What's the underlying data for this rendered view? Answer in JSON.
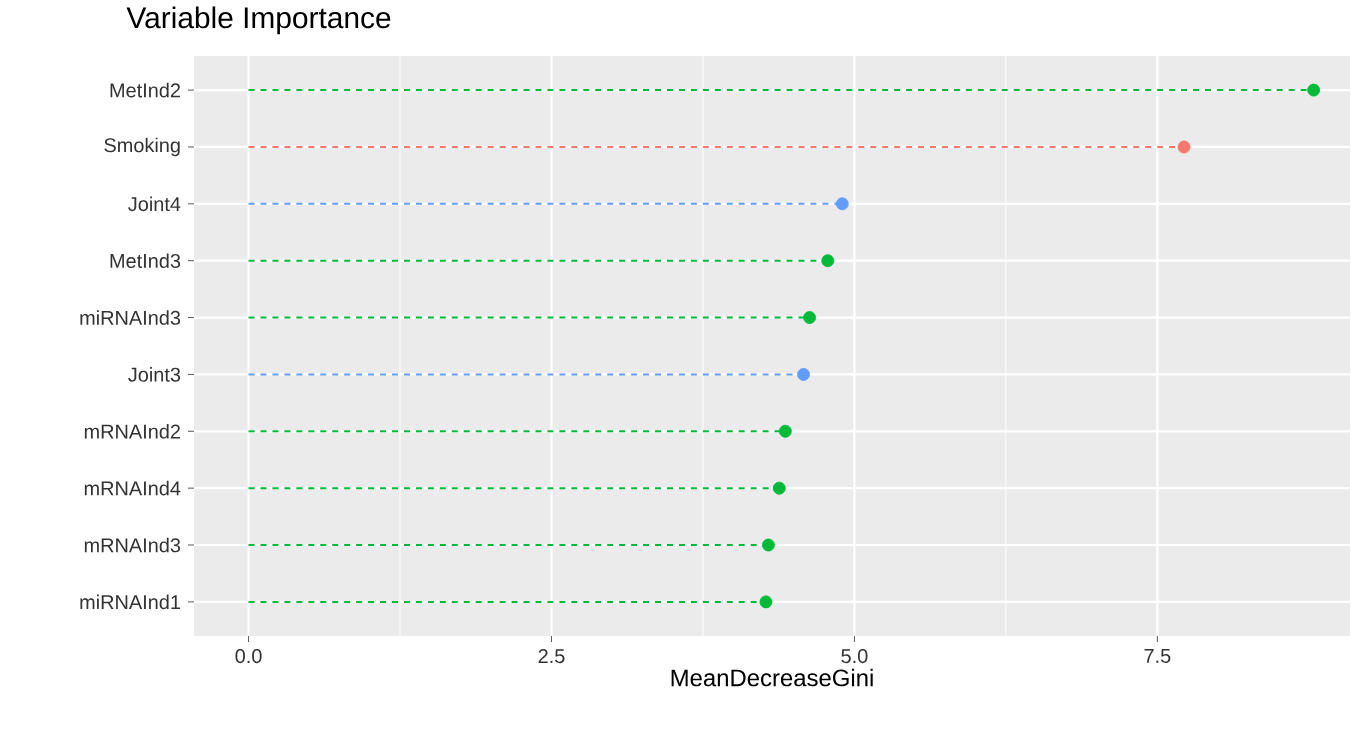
{
  "chart_data": {
    "type": "lollipop",
    "title": "Variable Importance",
    "xlabel": "MeanDecreaseGini",
    "orientation": "horizontal",
    "categories": [
      "MetInd2",
      "Smoking",
      "Joint4",
      "MetInd3",
      "miRNAInd3",
      "Joint3",
      "mRNAInd2",
      "mRNAInd4",
      "mRNAInd3",
      "miRNAInd1"
    ],
    "values": [
      8.79,
      7.72,
      4.9,
      4.78,
      4.63,
      4.58,
      4.43,
      4.38,
      4.29,
      4.27
    ],
    "colors": [
      "#00ba38",
      "#f8766d",
      "#619cff",
      "#00ba38",
      "#00ba38",
      "#619cff",
      "#00ba38",
      "#00ba38",
      "#00ba38",
      "#00ba38"
    ],
    "xlim": [
      -0.45,
      9.09
    ],
    "xticks": [
      {
        "value": 0,
        "label": "0.0"
      },
      2.5,
      {
        "value": 5,
        "label": "5.0"
      },
      7.5
    ],
    "grid": true,
    "marker": "circle",
    "line_style": "dashed"
  }
}
